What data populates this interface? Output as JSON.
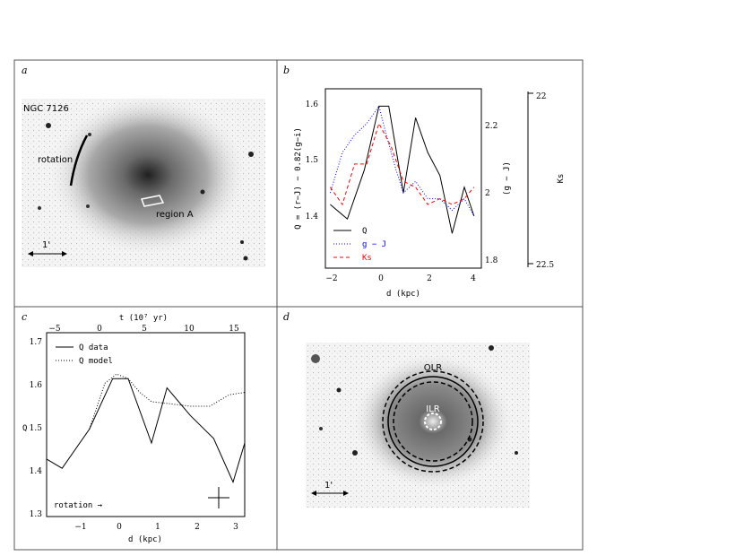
{
  "figure": {
    "panels": {
      "a": {
        "label": "a",
        "object": "NGC 7126",
        "rotation": "rotation",
        "region": "region A",
        "scale": "1'"
      },
      "b": {
        "label": "b",
        "ylabel_left": "Q = (r−J) − 0.82(g−i)",
        "ylabel_right": "(g − J)",
        "ylabel_far": "Ks",
        "xlabel": "d (kpc)",
        "left_ticks": [
          "1.6",
          "1.5",
          "1.4"
        ],
        "right_ticks": [
          "2.2",
          "2",
          "1.8"
        ],
        "far_ticks": [
          "22",
          "22.5"
        ],
        "x_ticks": [
          "−2",
          "0",
          "2",
          "4"
        ],
        "legend": [
          "Q",
          "g − J",
          "Ks"
        ]
      },
      "c": {
        "label": "c",
        "top_label": "t (10⁷ yr)",
        "xlabel": "d (kpc)",
        "ylabel": "Q",
        "y_ticks": [
          "1.7",
          "1.6",
          "1.5",
          "1.4",
          "1.3"
        ],
        "x_ticks": [
          "−1",
          "0",
          "1",
          "2",
          "3"
        ],
        "top_ticks": [
          "−5",
          "0",
          "5",
          "10",
          "15"
        ],
        "legend": [
          "Q data",
          "Q model"
        ],
        "rotation": "rotation →"
      },
      "d": {
        "label": "d",
        "olr": "OLR",
        "ilr": "ILR",
        "scale": "1'"
      }
    }
  },
  "chart_data": [
    {
      "type": "line",
      "panel": "b",
      "xlabel": "d (kpc)",
      "ylabel": "Q = (r−J) − 0.82(g−i)",
      "xlim": [
        -2.2,
        4.2
      ],
      "ylim": [
        1.32,
        1.63
      ],
      "series": [
        {
          "name": "Q",
          "color": "#000000",
          "style": "solid",
          "x": [
            -2.0,
            -1.3,
            -0.6,
            0.0,
            0.4,
            1.0,
            1.5,
            2.0,
            2.5,
            3.0,
            3.5,
            3.9
          ],
          "y": [
            1.43,
            1.405,
            1.49,
            1.6,
            1.6,
            1.45,
            1.58,
            1.52,
            1.48,
            1.38,
            1.46,
            1.41
          ]
        },
        {
          "name": "g − J",
          "color": "#0000ff",
          "style": "dotted",
          "x": [
            -2.0,
            -1.5,
            -1.0,
            -0.5,
            0.0,
            0.3,
            0.7,
            1.0,
            1.5,
            2.0,
            2.5,
            3.0,
            3.5,
            3.9
          ],
          "y": [
            1.45,
            1.52,
            1.55,
            1.57,
            1.6,
            1.55,
            1.49,
            1.45,
            1.47,
            1.44,
            1.44,
            1.42,
            1.44,
            1.41
          ]
        },
        {
          "name": "Ks",
          "color": "#ff0000",
          "style": "dashed",
          "x": [
            -2.0,
            -1.5,
            -1.0,
            -0.5,
            0.0,
            0.5,
            1.0,
            1.5,
            2.0,
            2.5,
            3.0,
            3.5,
            3.9
          ],
          "y": [
            1.46,
            1.43,
            1.5,
            1.5,
            1.57,
            1.53,
            1.47,
            1.46,
            1.43,
            1.44,
            1.43,
            1.44,
            1.46
          ]
        }
      ]
    },
    {
      "type": "line",
      "panel": "c",
      "xlabel": "d (kpc)",
      "ylabel": "Q",
      "xlim": [
        -1.7,
        3.4
      ],
      "ylim": [
        1.3,
        1.7
      ],
      "series": [
        {
          "name": "Q data",
          "color": "#000000",
          "style": "solid",
          "x": [
            -1.7,
            -1.3,
            -0.6,
            0.0,
            0.4,
            1.0,
            1.4,
            2.0,
            2.6,
            3.1,
            3.4
          ],
          "y": [
            1.425,
            1.405,
            1.49,
            1.6,
            1.6,
            1.46,
            1.58,
            1.52,
            1.47,
            1.375,
            1.46
          ]
        },
        {
          "name": "Q model",
          "color": "#000000",
          "style": "dotted",
          "x": [
            -0.6,
            -0.2,
            0.1,
            0.4,
            0.7,
            1.0,
            1.5,
            2.0,
            2.5,
            3.0,
            3.4
          ],
          "y": [
            1.49,
            1.59,
            1.61,
            1.6,
            1.57,
            1.55,
            1.545,
            1.54,
            1.54,
            1.565,
            1.57
          ]
        }
      ]
    }
  ]
}
